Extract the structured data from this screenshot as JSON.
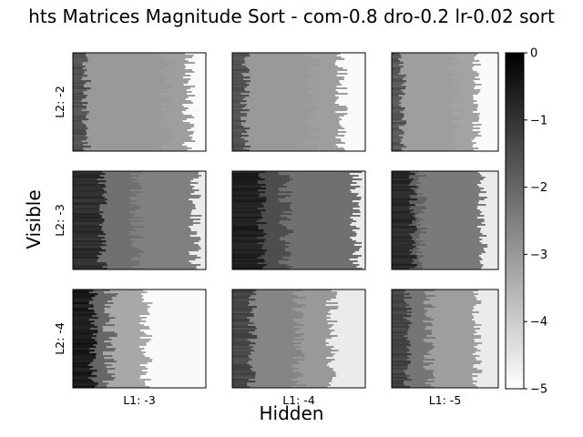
{
  "chart_data": {
    "type": "heatmap",
    "title": "hts Matrices Magnitude Sort - com-0.8 dro-0.2 lr-0.02 sort",
    "xlabel": "Hidden",
    "ylabel": "Visible",
    "col_labels": [
      "L1: -3",
      "L1: -4",
      "L1: -5"
    ],
    "row_labels": [
      "L2: -2",
      "L2: -3",
      "L2: -4"
    ],
    "colorbar": {
      "ticks": [
        0,
        -1,
        -2,
        -3,
        -4,
        -5
      ],
      "tick_labels": [
        "0",
        "−1",
        "−2",
        "−3",
        "−4",
        "−5"
      ],
      "range": [
        -5,
        0
      ],
      "colormap": "gray_r"
    },
    "panels": [
      [
        {
          "light_value": -1.8,
          "base_value": -3.0,
          "mid_value": -3.1,
          "dark_value": -4.9,
          "boundary1": 0.0,
          "boundary2": 0.7,
          "boundary3": 0.87
        },
        {
          "light_value": -1.8,
          "base_value": -3.0,
          "mid_value": -3.1,
          "dark_value": -4.9,
          "boundary1": 0.0,
          "boundary2": 0.6,
          "boundary3": 0.82
        },
        {
          "light_value": -1.9,
          "base_value": -3.1,
          "mid_value": -3.2,
          "dark_value": -4.9,
          "boundary1": 0.0,
          "boundary2": 0.6,
          "boundary3": 0.8
        }
      ],
      [
        {
          "light_value": -1.1,
          "base_value": -2.2,
          "mid_value": -2.5,
          "dark_value": -4.6,
          "boundary1": 0.12,
          "boundary2": 0.48,
          "boundary3": 0.92
        },
        {
          "light_value": -0.8,
          "base_value": -1.5,
          "mid_value": -2.2,
          "dark_value": -4.6,
          "boundary1": 0.12,
          "boundary2": 0.4,
          "boundary3": 0.93
        },
        {
          "light_value": -1.0,
          "base_value": -1.9,
          "mid_value": -2.4,
          "dark_value": -4.6,
          "boundary1": 0.1,
          "boundary2": 0.28,
          "boundary3": 0.85
        }
      ],
      [
        {
          "light_value": -0.7,
          "base_value": -2.0,
          "mid_value": -3.3,
          "dark_value": -4.9,
          "boundary1": 0.05,
          "boundary2": 0.28,
          "boundary3": 0.55
        },
        {
          "light_value": -1.6,
          "base_value": -2.6,
          "mid_value": -3.0,
          "dark_value": -4.6,
          "boundary1": 0.05,
          "boundary2": 0.5,
          "boundary3": 0.75
        },
        {
          "light_value": -1.5,
          "base_value": -2.3,
          "mid_value": -3.1,
          "dark_value": -4.6,
          "boundary1": 0.05,
          "boundary2": 0.35,
          "boundary3": 0.8
        }
      ]
    ]
  }
}
